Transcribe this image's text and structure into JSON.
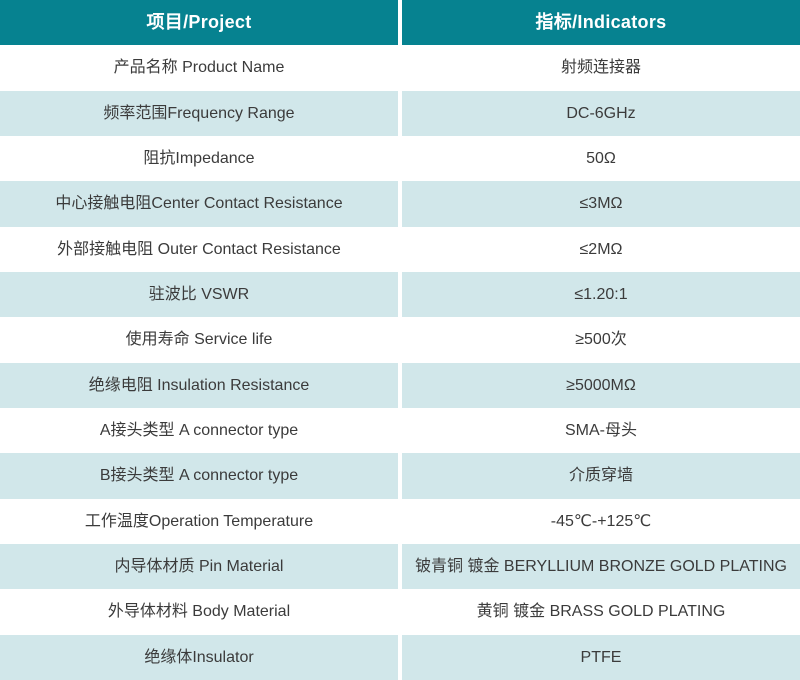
{
  "table": {
    "headers": [
      {
        "label": "项目/Project"
      },
      {
        "label": "指标/Indicators"
      }
    ],
    "rows": [
      {
        "project": "产品名称 Product Name",
        "indicator": "射频连接器"
      },
      {
        "project": "频率范围Frequency Range",
        "indicator": "DC-6GHz"
      },
      {
        "project": "阻抗Impedance",
        "indicator": "50Ω"
      },
      {
        "project": "中心接触电阻Center Contact Resistance",
        "indicator": "≤3MΩ"
      },
      {
        "project": "外部接触电阻 Outer Contact Resistance",
        "indicator": "≤2MΩ"
      },
      {
        "project": "驻波比 VSWR",
        "indicator": "≤1.20:1"
      },
      {
        "project": "使用寿命 Service life",
        "indicator": "≥500次"
      },
      {
        "project": "绝缘电阻 Insulation Resistance",
        "indicator": "≥5000MΩ"
      },
      {
        "project": "A接头类型 A connector type",
        "indicator": "SMA-母头"
      },
      {
        "project": "B接头类型 A connector type",
        "indicator": "介质穿墙"
      },
      {
        "project": "工作温度Operation Temperature",
        "indicator": "-45℃-+125℃"
      },
      {
        "project": "内导体材质 Pin Material",
        "indicator": "铍青铜 镀金 BERYLLIUM BRONZE GOLD PLATING"
      },
      {
        "project": "外导体材料 Body Material",
        "indicator": "黄铜 镀金 BRASS GOLD PLATING"
      },
      {
        "project": "绝缘体Insulator",
        "indicator": "PTFE"
      }
    ]
  },
  "colors": {
    "header_bg": "#068290",
    "header_text": "#ffffff",
    "row_bg": "#ffffff",
    "row_alt_bg": "#d1e7ea",
    "body_text": "#3b3b3b",
    "divider": "#ffffff"
  }
}
